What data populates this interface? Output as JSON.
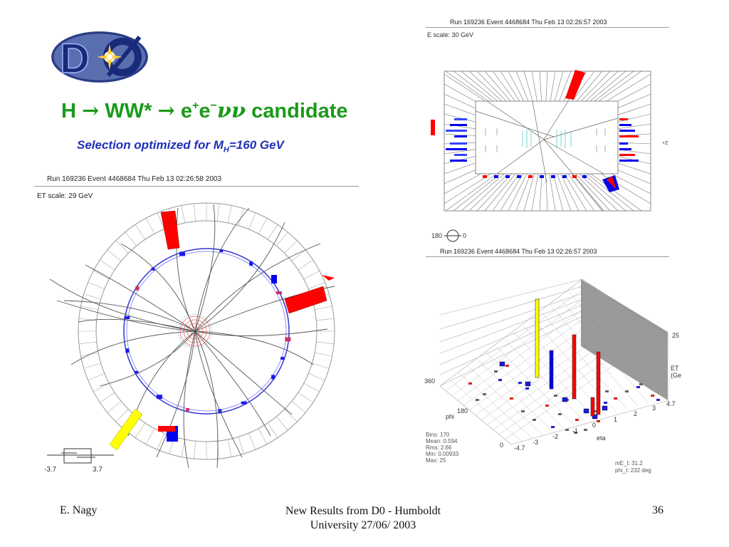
{
  "slide": {
    "title_parts": [
      "H",
      "→",
      "WW*",
      "→",
      "e",
      "+",
      "e",
      "−",
      "νν",
      "candidate"
    ],
    "subtitle_main": "Selection optimized for M",
    "subtitle_sub": "H",
    "subtitle_tail": "=160 GeV",
    "logo_text": "DØ"
  },
  "left_display": {
    "header": "Run 169236 Event 4468684 Thu Feb 13 02:26:58 2003",
    "scale": "ET scale: 29 GeV",
    "eta_low": "-3.7",
    "eta_high": "3.7"
  },
  "top_right_display": {
    "header": "Run 169236 Event 4468684 Thu Feb 13 02:26:57 2003",
    "scale": "E scale: 30 GeV",
    "side_label": "+Z",
    "phi_left": "180",
    "phi_right": "0"
  },
  "lego_display": {
    "header": "Run 169236 Event 4468684 Thu Feb 13 02:26:57 2003",
    "et_max": "25",
    "et_label": "ET",
    "et_unit": "(Ge",
    "phi_label": "phi",
    "phi_ticks": [
      "360",
      "180",
      "0"
    ],
    "eta_label": "eta",
    "eta_ticks": [
      "-4.7",
      "-3",
      "-2",
      "-1",
      "0",
      "1",
      "2",
      "3",
      "4.7"
    ],
    "stats": [
      "Bins: 170",
      "Mean: 0.594",
      "Rms: 2.66",
      "Min: 0.00933",
      "Max: 25"
    ],
    "missing_et": "mE_t: 31.2",
    "phi_t": "phi_t: 232 deg"
  },
  "footer": {
    "author": "E. Nagy",
    "center_line1": "New Results from D0 - Humboldt",
    "center_line2": "University  27/06/ 2003",
    "page": "36"
  },
  "colors": {
    "title_green": "#1a9a1a",
    "subtitle_blue": "#1f2fb8",
    "electron_red": "#ff0000",
    "muon_blue": "#0000ee",
    "jet_yellow": "#ffff00"
  }
}
